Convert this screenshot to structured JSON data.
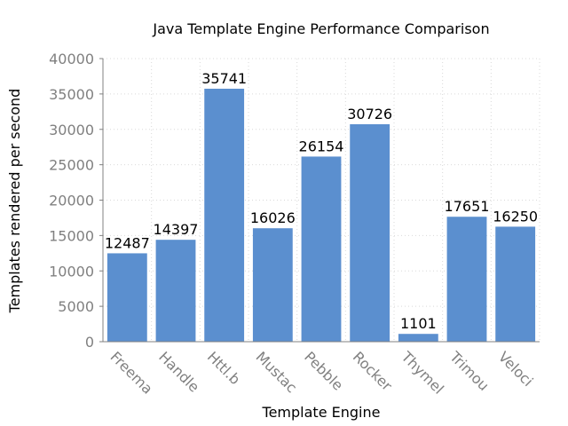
{
  "chart_data": {
    "type": "bar",
    "title": "Java Template Engine Performance Comparison",
    "xlabel": "Template Engine",
    "ylabel": "Templates rendered per second",
    "categories": [
      "Freema",
      "Handle",
      "Httl.b",
      "Mustac",
      "Pebble",
      "Rocker",
      "Thymel",
      "Trimou",
      "Veloci"
    ],
    "values": [
      12487,
      14397,
      35741,
      16026,
      26154,
      30726,
      1101,
      17651,
      16250
    ],
    "ylim": [
      0,
      40000
    ],
    "yticks": [
      0,
      5000,
      10000,
      15000,
      20000,
      25000,
      30000,
      35000,
      40000
    ],
    "grid": true,
    "legend": "none",
    "bar_color": "#5b8fcf"
  }
}
